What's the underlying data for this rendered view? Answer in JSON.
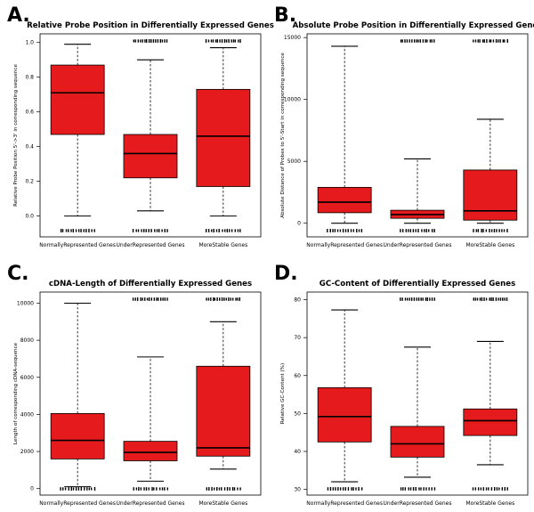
{
  "chart_data": [
    {
      "type": "box",
      "panel": "A.",
      "title": "Relative Probe Position in Differentially Expressed Genes",
      "ylabel": "Relative Probe Position 5'->3' in corresponding sequence",
      "xlabel": "",
      "categories": [
        "NormallyRepresented Genes",
        "UnderRepresented Genes",
        "MoreStable Genes"
      ],
      "ylim": [
        -0.12,
        1.05
      ],
      "yticks": [
        0.0,
        0.2,
        0.4,
        0.6,
        0.8,
        1.0
      ],
      "ytick_labels": [
        "0.0",
        "0.2",
        "0.4",
        "0.6",
        "0.8",
        "1.0"
      ],
      "boxes": [
        {
          "whisker_low": 0.0,
          "q1": 0.47,
          "median": 0.71,
          "q3": 0.87,
          "whisker_high": 0.99,
          "outliers_high": false,
          "outliers_low": false,
          "rug_low": true,
          "rug_high": false
        },
        {
          "whisker_low": 0.03,
          "q1": 0.22,
          "median": 0.36,
          "q3": 0.47,
          "whisker_high": 0.9,
          "outliers_high": true,
          "outliers_low": false,
          "rug_low": true,
          "rug_high": true
        },
        {
          "whisker_low": 0.0,
          "q1": 0.17,
          "median": 0.46,
          "q3": 0.73,
          "whisker_high": 0.97,
          "outliers_high": true,
          "outliers_low": false,
          "rug_low": true,
          "rug_high": true
        }
      ]
    },
    {
      "type": "box",
      "panel": "B.",
      "title": "Absolute Probe Position in Differentially Expressed Genes",
      "ylabel": "Absolute Distance of Probes to 5'-Start in corresponding sequence",
      "xlabel": "",
      "categories": [
        "NormallyRepresented Genes",
        "UnderRepresented Genes",
        "MoreStable Genes"
      ],
      "ylim": [
        -1100,
        15300
      ],
      "yticks": [
        0,
        5000,
        10000,
        15000
      ],
      "ytick_labels": [
        "0",
        "5000",
        "10000",
        "15000"
      ],
      "boxes": [
        {
          "whisker_low": 0,
          "q1": 850,
          "median": 1700,
          "q3": 2900,
          "whisker_high": 14300,
          "outliers_high": false,
          "outliers_low": false,
          "rug_low": true,
          "rug_high": false
        },
        {
          "whisker_low": 0,
          "q1": 400,
          "median": 700,
          "q3": 1050,
          "whisker_high": 5200,
          "outliers_high": true,
          "outliers_low": false,
          "rug_low": true,
          "rug_high": true
        },
        {
          "whisker_low": 0,
          "q1": 250,
          "median": 1000,
          "q3": 4300,
          "whisker_high": 8400,
          "outliers_high": true,
          "outliers_low": false,
          "rug_low": true,
          "rug_high": true
        }
      ]
    },
    {
      "type": "box",
      "panel": "C.",
      "title": "cDNA-Length of Differentially Expressed Genes",
      "ylabel": "Length of corresponding cDNA-sequence",
      "xlabel": "",
      "categories": [
        "NormallyRepresented Genes",
        "UnderRepresented Genes",
        "MoreStable Genes"
      ],
      "ylim": [
        -350,
        10600
      ],
      "yticks": [
        0,
        2000,
        4000,
        6000,
        8000,
        10000
      ],
      "ytick_labels": [
        "0",
        "2000",
        "4000",
        "6000",
        "8000",
        "10000"
      ],
      "boxes": [
        {
          "whisker_low": 100,
          "q1": 1600,
          "median": 2600,
          "q3": 4050,
          "whisker_high": 10000,
          "outliers_high": false,
          "outliers_low": false,
          "rug_low": true,
          "rug_high": false
        },
        {
          "whisker_low": 400,
          "q1": 1500,
          "median": 1950,
          "q3": 2550,
          "whisker_high": 7100,
          "outliers_high": true,
          "outliers_low": false,
          "rug_low": true,
          "rug_high": true
        },
        {
          "whisker_low": 1050,
          "q1": 1750,
          "median": 2200,
          "q3": 6600,
          "whisker_high": 9000,
          "outliers_high": true,
          "outliers_low": false,
          "rug_low": true,
          "rug_high": true
        }
      ]
    },
    {
      "type": "box",
      "panel": "D.",
      "title": "GC-Content of Differentially Expressed Genes",
      "ylabel": "Relative GC-Content (%)",
      "xlabel": "",
      "categories": [
        "NormallyRepresented Genes",
        "UnderRepresented Genes",
        "MoreStable Genes"
      ],
      "ylim": [
        28.5,
        82
      ],
      "yticks": [
        30,
        40,
        50,
        60,
        70,
        80
      ],
      "ytick_labels": [
        "30",
        "40",
        "50",
        "60",
        "70",
        "80"
      ],
      "boxes": [
        {
          "whisker_low": 32,
          "q1": 42.5,
          "median": 49.2,
          "q3": 56.8,
          "whisker_high": 77.3,
          "outliers_high": false,
          "outliers_low": false,
          "rug_low": true,
          "rug_high": false
        },
        {
          "whisker_low": 33.2,
          "q1": 38.5,
          "median": 42,
          "q3": 46.6,
          "whisker_high": 67.5,
          "outliers_high": true,
          "outliers_low": false,
          "rug_low": true,
          "rug_high": true
        },
        {
          "whisker_low": 36.5,
          "q1": 44.2,
          "median": 48.1,
          "q3": 51.2,
          "whisker_high": 69,
          "outliers_high": true,
          "outliers_low": false,
          "rug_low": true,
          "rug_high": true
        }
      ]
    }
  ],
  "style": {
    "box_fill": "#e41a1c",
    "box_stroke": "#000000"
  }
}
